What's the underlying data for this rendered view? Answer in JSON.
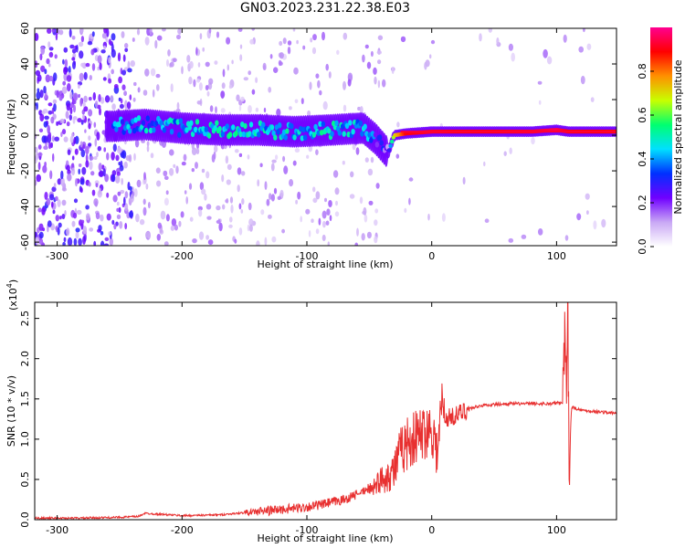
{
  "title": "GN03.2023.231.22.38.E03",
  "chart_data": [
    {
      "type": "heatmap",
      "xlabel": "Height of straight line (km)",
      "ylabel": "Frequency (Hz)",
      "xlim": [
        -318,
        148
      ],
      "ylim": [
        -62,
        60
      ],
      "x_ticks": [
        -300,
        -200,
        -100,
        0,
        100
      ],
      "y_ticks": [
        -60,
        -40,
        -20,
        0,
        20,
        40,
        60
      ],
      "grid": false,
      "colorbar": {
        "label": "Normalized spectral amplitude",
        "range": [
          0,
          1
        ],
        "ticks": [
          "0.0",
          "0.2",
          "0.4",
          "0.6",
          "0.8"
        ],
        "colors": [
          "#ffffff",
          "#c9a8f5",
          "#7000ff",
          "#0030ff",
          "#00e0ff",
          "#00ff70",
          "#c8ff00",
          "#ff9000",
          "#ff0000",
          "#ff0090"
        ]
      },
      "ridge": {
        "x": [
          -255,
          -230,
          -200,
          -170,
          -140,
          -110,
          -80,
          -55,
          -45,
          -40,
          -35,
          -30,
          -20,
          0,
          20,
          50,
          80,
          100,
          110,
          148
        ],
        "freq": [
          5,
          6,
          4,
          3,
          3,
          2,
          3,
          4,
          -2,
          -6,
          -10,
          0,
          1,
          2,
          2,
          2,
          2,
          3,
          2,
          2
        ],
        "amplitude": [
          0.35,
          0.4,
          0.42,
          0.45,
          0.45,
          0.42,
          0.45,
          0.4,
          0.3,
          0.25,
          0.2,
          0.7,
          0.9,
          0.92,
          0.9,
          0.9,
          0.92,
          0.95,
          0.9,
          0.88
        ]
      }
    },
    {
      "type": "line",
      "xlabel": "Height of straight line (km)",
      "ylabel": "SNR (10 * v/v)",
      "scale_label": "(x10",
      "scale_exponent": "4",
      "xlim": [
        -318,
        148
      ],
      "ylim": [
        0,
        2.7
      ],
      "x_ticks": [
        -300,
        -200,
        -100,
        0,
        100
      ],
      "y_ticks": [
        "0.0",
        "0.5",
        "1.0",
        "1.5",
        "2.0",
        "2.5"
      ],
      "grid": false,
      "color": "#e83030",
      "series": [
        {
          "x": [
            -318,
            -280,
            -250,
            -235,
            -230,
            -200,
            -170,
            -140,
            -110,
            -90,
            -70,
            -50,
            -40,
            -30,
            -25,
            -20,
            -10,
            0,
            5,
            8,
            10,
            20,
            30,
            40,
            60,
            80,
            95,
            100,
            105,
            107,
            108,
            109,
            110,
            112,
            120,
            148
          ],
          "y": [
            0.02,
            0.02,
            0.03,
            0.04,
            0.08,
            0.05,
            0.06,
            0.1,
            0.14,
            0.18,
            0.25,
            0.38,
            0.5,
            0.62,
            0.85,
            0.95,
            1.05,
            1.15,
            0.8,
            1.5,
            1.25,
            1.3,
            1.38,
            1.42,
            1.44,
            1.44,
            1.44,
            1.45,
            1.45,
            2.5,
            1.9,
            2.7,
            0.65,
            1.4,
            1.36,
            1.32
          ]
        }
      ]
    }
  ]
}
